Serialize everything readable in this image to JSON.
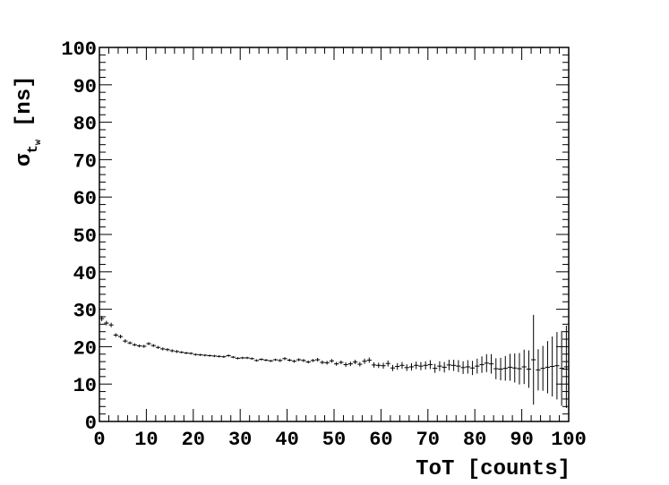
{
  "chart_data": {
    "type": "scatter",
    "title": "",
    "xlabel": "ToT [counts]",
    "ylabel": {
      "symbol": "σ",
      "sub": "t",
      "subsub": "w",
      "unit": "[ns]"
    },
    "xlim": [
      0,
      100
    ],
    "ylim": [
      0,
      100
    ],
    "x_ticks": [
      "0",
      "10",
      "20",
      "30",
      "40",
      "50",
      "60",
      "70",
      "80",
      "90",
      "100"
    ],
    "y_ticks": [
      "0",
      "10",
      "20",
      "30",
      "40",
      "50",
      "60",
      "70",
      "80",
      "90",
      "100"
    ],
    "grid": false,
    "legend": "none",
    "marker_color": "#000000",
    "series": [
      {
        "x": [
          0.5,
          1.5,
          2.5,
          3.5,
          4.5,
          5.5,
          6.5,
          7.5,
          8.5,
          9.5,
          10.5,
          11.5,
          12.5,
          13.5,
          14.5,
          15.5,
          16.5,
          17.5,
          18.5,
          19.5,
          20.5,
          21.5,
          22.5,
          23.5,
          24.5,
          25.5,
          26.5,
          27.5,
          28.5,
          29.5,
          30.5,
          31.5,
          32.5,
          33.5,
          34.5,
          35.5,
          36.5,
          37.5,
          38.5,
          39.5,
          40.5,
          41.5,
          42.5,
          43.5,
          44.5,
          45.5,
          46.5,
          47.5,
          48.5,
          49.5,
          50.5,
          51.5,
          52.5,
          53.5,
          54.5,
          55.5,
          56.5,
          57.5,
          58.5,
          59.5,
          60.5,
          61.5,
          62.5,
          63.5,
          64.5,
          65.5,
          66.5,
          67.5,
          68.5,
          69.5,
          70.5,
          71.5,
          72.5,
          73.5,
          74.5,
          75.5,
          76.5,
          77.5,
          78.5,
          79.5,
          80.5,
          81.5,
          82.5,
          83.5,
          84.5,
          85.5,
          86.5,
          87.5,
          88.5,
          89.5,
          90.5,
          91.5,
          92.5,
          93.5,
          94.5,
          95.5,
          96.5,
          97.5,
          98.5,
          99.5
        ],
        "y": [
          27.5,
          26.3,
          25.8,
          23.1,
          22.7,
          21.5,
          21.0,
          20.5,
          20.2,
          20.1,
          20.8,
          20.3,
          19.8,
          19.4,
          19.2,
          18.9,
          18.7,
          18.5,
          18.3,
          18.2,
          17.9,
          17.8,
          17.7,
          17.6,
          17.5,
          17.4,
          17.3,
          17.6,
          17.2,
          16.9,
          17.0,
          17.0,
          16.8,
          16.3,
          16.6,
          16.4,
          16.2,
          16.5,
          16.3,
          16.8,
          16.4,
          16.1,
          16.5,
          16.3,
          15.9,
          16.3,
          16.5,
          15.8,
          15.7,
          16.2,
          15.4,
          15.8,
          15.2,
          15.4,
          15.9,
          15.3,
          16.1,
          16.4,
          15.1,
          15.0,
          14.9,
          15.5,
          14.3,
          14.7,
          15.0,
          14.4,
          14.6,
          15.0,
          14.8,
          15.0,
          15.2,
          14.2,
          14.8,
          14.5,
          15.1,
          15.0,
          14.8,
          14.4,
          14.6,
          14.3,
          14.8,
          15.2,
          15.6,
          15.4,
          14.1,
          14.0,
          14.2,
          14.5,
          14.3,
          14.1,
          14.6,
          14.0,
          16.5,
          13.8,
          14.2,
          14.5,
          14.7,
          14.9,
          14.2,
          14.6
        ],
        "yerr": [
          0.7,
          0.6,
          0.6,
          0.5,
          0.5,
          0.5,
          0.4,
          0.4,
          0.4,
          0.4,
          0.4,
          0.4,
          0.4,
          0.4,
          0.4,
          0.4,
          0.4,
          0.3,
          0.3,
          0.3,
          0.3,
          0.3,
          0.3,
          0.3,
          0.3,
          0.3,
          0.3,
          0.3,
          0.3,
          0.3,
          0.3,
          0.3,
          0.3,
          0.3,
          0.3,
          0.3,
          0.3,
          0.3,
          0.4,
          0.4,
          0.4,
          0.4,
          0.4,
          0.4,
          0.4,
          0.4,
          0.5,
          0.5,
          0.5,
          0.5,
          0.5,
          0.5,
          0.6,
          0.6,
          0.6,
          0.6,
          0.7,
          0.7,
          0.7,
          0.7,
          0.8,
          0.8,
          0.8,
          0.9,
          0.9,
          0.9,
          1.0,
          1.0,
          1.1,
          1.1,
          1.2,
          1.2,
          1.3,
          1.4,
          1.4,
          1.5,
          1.6,
          1.7,
          1.8,
          1.9,
          2.0,
          2.2,
          2.4,
          2.6,
          2.8,
          3.0,
          3.3,
          3.6,
          3.9,
          4.2,
          4.6,
          5.0,
          12.0,
          5.5,
          6.0,
          7.0,
          8.0,
          9.0,
          10.0,
          11.0
        ]
      }
    ]
  }
}
